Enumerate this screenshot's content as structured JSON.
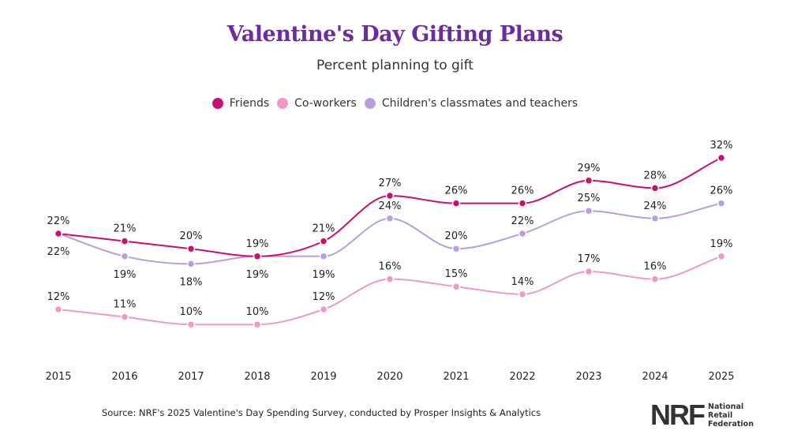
{
  "chart_data": {
    "type": "line",
    "title": "Valentine's Day Gifting Plans",
    "subtitle": "Percent planning to gift",
    "x": [
      "2015",
      "2016",
      "2017",
      "2018",
      "2019",
      "2020",
      "2021",
      "2022",
      "2023",
      "2024",
      "2025"
    ],
    "unit": "%",
    "legend_position": "top",
    "grid": false,
    "series": [
      {
        "name": "Friends",
        "color": "#c8106e",
        "values": [
          22,
          21,
          20,
          19,
          21,
          27,
          26,
          26,
          29,
          28,
          32
        ]
      },
      {
        "name": "Co-workers",
        "color": "#ee99c8",
        "values": [
          12,
          11,
          10,
          10,
          12,
          16,
          15,
          14,
          17,
          16,
          19
        ]
      },
      {
        "name": "Children's classmates and teachers",
        "color": "#b89ee0",
        "values": [
          22,
          19,
          18,
          19,
          19,
          24,
          20,
          22,
          25,
          24,
          26
        ]
      }
    ]
  },
  "footer": {
    "source": "Source: NRF's 2025 Valentine's Day Spending Survey, conducted by Prosper Insights & Analytics",
    "logo_mark": "NRF",
    "logo_lines": [
      "National",
      "Retail",
      "Federation"
    ]
  }
}
